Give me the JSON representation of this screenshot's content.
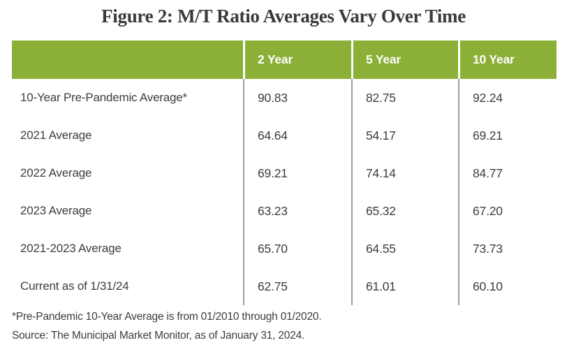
{
  "chart_data": {
    "type": "table",
    "title": "Figure 2: M/T Ratio Averages Vary Over Time",
    "columns": [
      "2 Year",
      "5 Year",
      "10 Year"
    ],
    "rows": [
      {
        "label": "10-Year Pre-Pandemic Average*",
        "values": [
          "90.83",
          "82.75",
          "92.24"
        ]
      },
      {
        "label": "2021 Average",
        "values": [
          "64.64",
          "54.17",
          "69.21"
        ]
      },
      {
        "label": "2022 Average",
        "values": [
          "69.21",
          "74.14",
          "84.77"
        ]
      },
      {
        "label": "2023 Average",
        "values": [
          "63.23",
          "65.32",
          "67.20"
        ]
      },
      {
        "label": "2021-2023 Average",
        "values": [
          "65.70",
          "64.55",
          "73.73"
        ]
      },
      {
        "label": "Current as of 1/31/24",
        "values": [
          "62.75",
          "61.01",
          "60.10"
        ]
      }
    ],
    "footnotes": [
      "*Pre-Pandemic 10-Year Average is from 01/2010 through 01/2020.",
      "Source: The Municipal Market Monitor, as of January 31, 2024."
    ],
    "colors": {
      "header_background": "#8baf37",
      "header_text": "#ffffff",
      "body_text": "#3d3d3d",
      "divider": "#9c9c9c"
    },
    "layout": {
      "grid": "vertical-dividers-only",
      "legend_position": "none"
    }
  }
}
